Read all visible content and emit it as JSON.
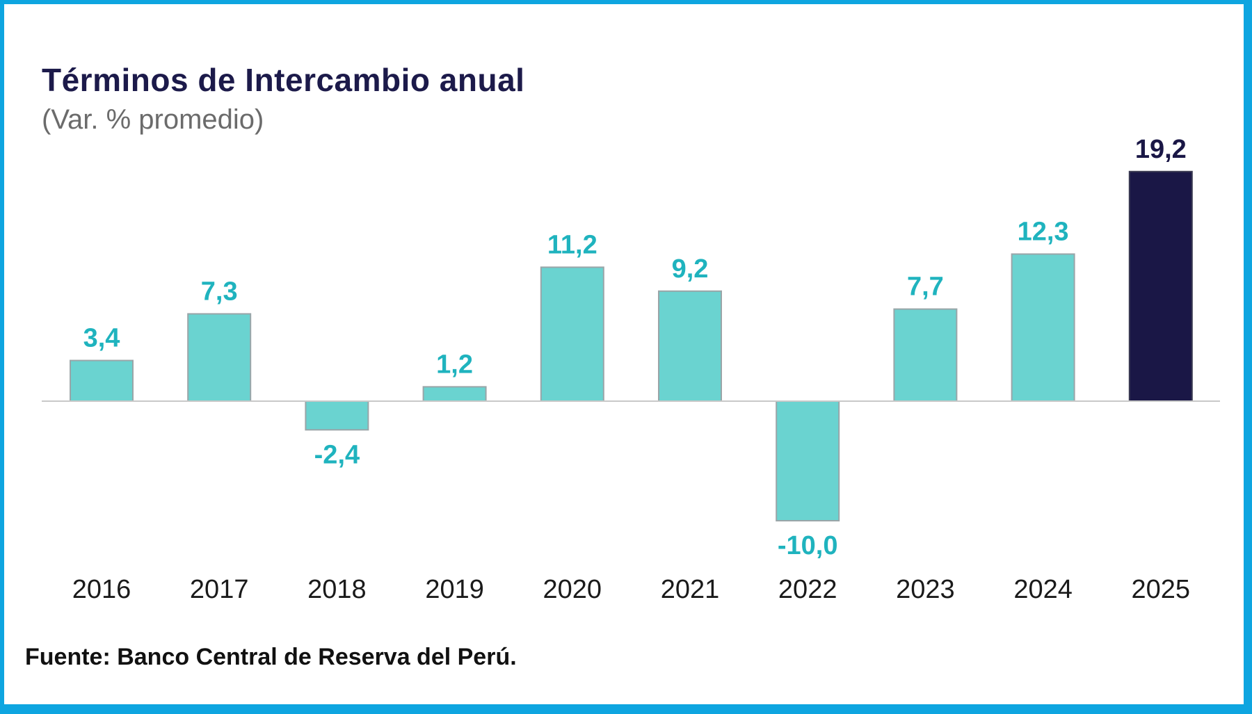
{
  "chart_data": {
    "type": "bar",
    "title": "Términos de Intercambio anual",
    "subtitle": "(Var. % promedio)",
    "xlabel": "",
    "ylabel": "",
    "categories": [
      "2016",
      "2017",
      "2018",
      "2019",
      "2020",
      "2021",
      "2022",
      "2023",
      "2024",
      "2025"
    ],
    "values": [
      3.4,
      7.3,
      -2.4,
      1.2,
      11.2,
      9.2,
      -10.0,
      7.7,
      12.3,
      19.2
    ],
    "data_labels": [
      "3,4",
      "7,3",
      "-2,4",
      "1,2",
      "11,2",
      "9,2",
      "-10,0",
      "7,7",
      "12,3",
      "19,2"
    ],
    "highlight_index": 9,
    "ylim": [
      -10,
      19.2
    ],
    "grid": false,
    "legend": "none",
    "colors": {
      "bar": "#6ad3d0",
      "bar_outline": "#9aa5a8",
      "label": "#1fb3be",
      "highlight_bar": "#1a1746",
      "highlight_label": "#1a1746",
      "axis": "#c8c8c8"
    },
    "source": "Fuente: Banco Central de Reserva del Perú."
  }
}
